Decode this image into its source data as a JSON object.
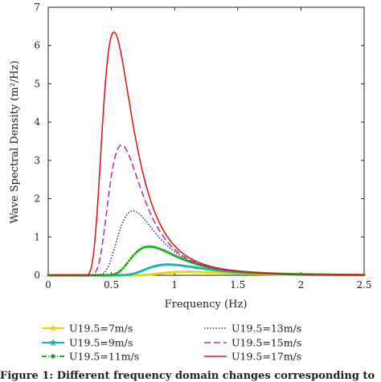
{
  "chart_data": {
    "type": "line",
    "title": "",
    "xlabel": "Frequency (Hz)",
    "ylabel": "Wave Spectral Density (m²/Hz)",
    "xlim": [
      0,
      2.5
    ],
    "ylim": [
      0,
      7
    ],
    "xticks": [
      "0",
      "0.5",
      "1",
      "1.5",
      "2",
      "2.5"
    ],
    "yticks": [
      "0",
      "1",
      "2",
      "3",
      "4",
      "5",
      "6",
      "7"
    ],
    "grid": false,
    "legend_position": "bottom",
    "series": [
      {
        "name": "U19.5=7m/s",
        "color": "#e6d800",
        "style": "solid-star-markers",
        "peak_freq": 1.1,
        "peak_value": 0.09,
        "onset_freq": 0.72
      },
      {
        "name": "U19.5=9m/s",
        "color": "#19b3b3",
        "style": "solid-star-markers",
        "peak_freq": 0.95,
        "peak_value": 0.28,
        "onset_freq": 0.58
      },
      {
        "name": "U19.5=11m/s",
        "color": "#22aa22",
        "style": "dash-dot-markers",
        "peak_freq": 0.8,
        "peak_value": 0.75,
        "onset_freq": 0.48
      },
      {
        "name": "U19.5=13m/s",
        "color": "#2a2a9a",
        "style": "dotted",
        "peak_freq": 0.67,
        "peak_value": 1.68,
        "onset_freq": 0.41
      },
      {
        "name": "U19.5=15m/s",
        "color": "#c2338f",
        "style": "dashed",
        "peak_freq": 0.58,
        "peak_value": 3.4,
        "onset_freq": 0.36
      },
      {
        "name": "U19.5=17m/s",
        "color": "#d42020",
        "style": "solid",
        "peak_freq": 0.52,
        "peak_value": 6.35,
        "onset_freq": 0.32
      }
    ]
  },
  "caption": "Figure 1: Different frequency domain changes corresponding to"
}
